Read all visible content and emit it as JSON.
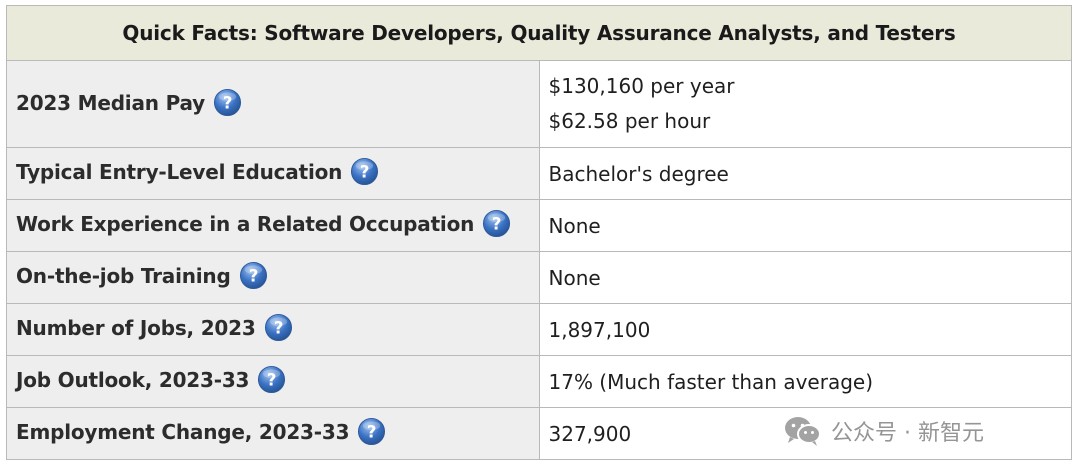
{
  "table": {
    "title": "Quick Facts: Software Developers, Quality Assurance Analysts, and Testers",
    "rows": [
      {
        "label": "2023 Median Pay",
        "values": [
          "$130,160 per year",
          "$62.58 per hour"
        ]
      },
      {
        "label": "Typical Entry-Level Education",
        "values": [
          "Bachelor's degree"
        ]
      },
      {
        "label": "Work Experience in a Related Occupation",
        "values": [
          "None"
        ]
      },
      {
        "label": "On-the-job Training",
        "values": [
          "None"
        ]
      },
      {
        "label": "Number of Jobs, 2023",
        "values": [
          "1,897,100"
        ]
      },
      {
        "label": "Job Outlook, 2023-33",
        "values": [
          "17% (Much faster than average)"
        ]
      },
      {
        "label": "Employment Change, 2023-33",
        "values": [
          "327,900"
        ]
      }
    ],
    "help_icon": "question-mark-circle-icon"
  },
  "watermark": {
    "text": "公众号 · 新智元",
    "icon": "wechat-icon"
  },
  "colors": {
    "header_bg": "#eaeadb",
    "label_bg": "#eeeeee",
    "border": "#b9b9b9",
    "help_icon_blue": "#3b72c4"
  }
}
